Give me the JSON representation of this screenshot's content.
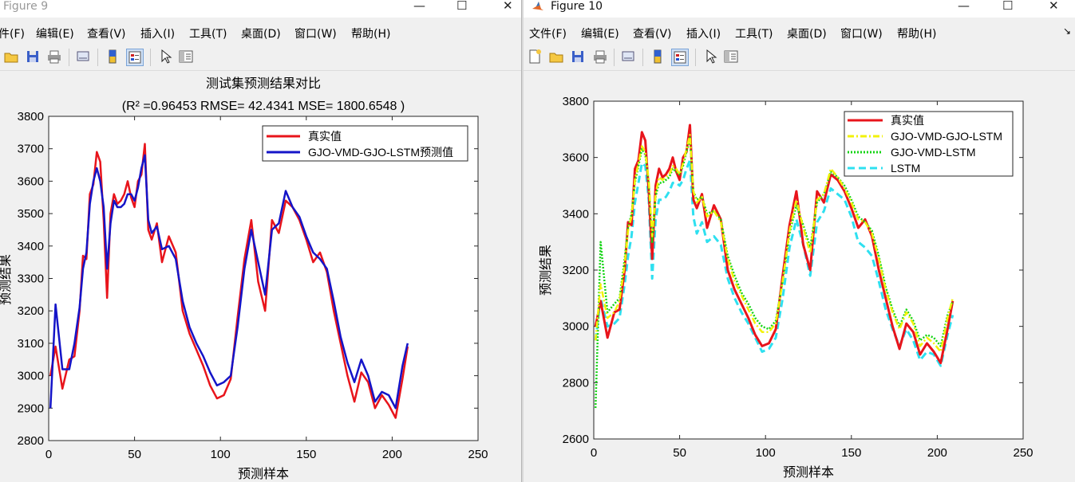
{
  "figure9": {
    "title": "Figure 9",
    "menu": [
      "件(F)",
      "编辑(E)",
      "查看(V)",
      "插入(I)",
      "工具(T)",
      "桌面(D)",
      "窗口(W)",
      "帮助(H)"
    ]
  },
  "figure10": {
    "title": "Figure 10",
    "menu": [
      "文件(F)",
      "编辑(E)",
      "查看(V)",
      "插入(I)",
      "工具(T)",
      "桌面(D)",
      "窗口(W)",
      "帮助(H)"
    ]
  },
  "colors": {
    "real": "#e8141b",
    "gjo_vmd_gjo_lstm_fig9": "#1414c8",
    "gjo_vmd_gjo_lstm_fig10": "#f2f20a",
    "gjo_vmd_lstm": "#14d414",
    "lstm": "#2ee0f0"
  },
  "chart_data": [
    {
      "type": "line",
      "title": "测试集预测结果对比",
      "subtitle": "(R² =0.96453 RMSE= 42.4341 MSE= 1800.6548 )",
      "xlabel": "预测样本",
      "ylabel": "预测结果",
      "xlim": [
        0,
        250
      ],
      "ylim": [
        2800,
        3800
      ],
      "xticks": [
        0,
        50,
        100,
        150,
        200,
        250
      ],
      "yticks": [
        2800,
        2900,
        3000,
        3100,
        3200,
        3300,
        3400,
        3500,
        3600,
        3700,
        3800
      ],
      "legend": "top-right",
      "x": [
        1,
        4,
        8,
        12,
        15,
        18,
        20,
        22,
        24,
        26,
        28,
        30,
        32,
        34,
        36,
        38,
        40,
        42,
        44,
        46,
        48,
        50,
        52,
        54,
        56,
        58,
        60,
        63,
        66,
        70,
        74,
        78,
        82,
        86,
        90,
        94,
        98,
        102,
        106,
        110,
        114,
        118,
        122,
        126,
        130,
        134,
        138,
        142,
        146,
        150,
        154,
        158,
        162,
        166,
        170,
        174,
        178,
        182,
        186,
        190,
        194,
        198,
        202,
        206,
        209
      ],
      "series": [
        {
          "name": "真实值",
          "values": [
            3000,
            3090,
            2960,
            3050,
            3060,
            3200,
            3370,
            3360,
            3560,
            3590,
            3690,
            3660,
            3480,
            3240,
            3500,
            3560,
            3530,
            3540,
            3560,
            3600,
            3550,
            3520,
            3600,
            3620,
            3715,
            3450,
            3420,
            3470,
            3350,
            3430,
            3380,
            3200,
            3130,
            3080,
            3030,
            2970,
            2930,
            2940,
            2990,
            3180,
            3360,
            3480,
            3290,
            3200,
            3480,
            3440,
            3540,
            3520,
            3480,
            3420,
            3350,
            3380,
            3320,
            3200,
            3100,
            3000,
            2920,
            3010,
            2980,
            2900,
            2940,
            2910,
            2870,
            2990,
            3090
          ]
        },
        {
          "name": "GJO-VMD-GJO-LSTM预测值",
          "values": [
            2900,
            3220,
            3020,
            3020,
            3100,
            3210,
            3330,
            3380,
            3530,
            3600,
            3640,
            3600,
            3520,
            3330,
            3470,
            3540,
            3520,
            3520,
            3530,
            3560,
            3560,
            3540,
            3580,
            3640,
            3680,
            3480,
            3440,
            3460,
            3390,
            3400,
            3360,
            3230,
            3150,
            3100,
            3060,
            3010,
            2970,
            2980,
            3000,
            3150,
            3330,
            3450,
            3350,
            3250,
            3450,
            3470,
            3570,
            3520,
            3490,
            3430,
            3380,
            3360,
            3330,
            3230,
            3120,
            3040,
            2980,
            3050,
            3000,
            2920,
            2950,
            2940,
            2900,
            3030,
            3100
          ]
        }
      ]
    },
    {
      "type": "line",
      "title": "",
      "xlabel": "预测样本",
      "ylabel": "预测结果",
      "xlim": [
        0,
        250
      ],
      "ylim": [
        2600,
        3800
      ],
      "xticks": [
        0,
        50,
        100,
        150,
        200,
        250
      ],
      "yticks": [
        2600,
        2800,
        3000,
        3200,
        3400,
        3600,
        3800
      ],
      "legend": "top-right",
      "x": [
        1,
        4,
        8,
        12,
        15,
        18,
        20,
        22,
        24,
        26,
        28,
        30,
        32,
        34,
        36,
        38,
        40,
        42,
        44,
        46,
        48,
        50,
        52,
        54,
        56,
        58,
        60,
        63,
        66,
        70,
        74,
        78,
        82,
        86,
        90,
        94,
        98,
        102,
        106,
        110,
        114,
        118,
        122,
        126,
        130,
        134,
        138,
        142,
        146,
        150,
        154,
        158,
        162,
        166,
        170,
        174,
        178,
        182,
        186,
        190,
        194,
        198,
        202,
        206,
        209
      ],
      "series": [
        {
          "name": "真实值",
          "values": [
            3000,
            3090,
            2960,
            3050,
            3060,
            3200,
            3370,
            3360,
            3560,
            3590,
            3690,
            3660,
            3480,
            3240,
            3500,
            3560,
            3530,
            3540,
            3560,
            3600,
            3550,
            3520,
            3600,
            3620,
            3715,
            3450,
            3420,
            3470,
            3350,
            3430,
            3380,
            3200,
            3130,
            3080,
            3030,
            2970,
            2930,
            2940,
            2990,
            3180,
            3360,
            3480,
            3290,
            3200,
            3480,
            3440,
            3540,
            3520,
            3480,
            3420,
            3350,
            3380,
            3320,
            3200,
            3100,
            3000,
            2920,
            3010,
            2980,
            2900,
            2940,
            2910,
            2870,
            2990,
            3090
          ]
        },
        {
          "name": "GJO-VMD-GJO-LSTM",
          "values": [
            2950,
            3150,
            3030,
            3050,
            3090,
            3220,
            3340,
            3390,
            3520,
            3580,
            3640,
            3620,
            3520,
            3320,
            3470,
            3530,
            3520,
            3530,
            3540,
            3570,
            3560,
            3540,
            3580,
            3630,
            3680,
            3480,
            3440,
            3460,
            3390,
            3410,
            3370,
            3240,
            3160,
            3110,
            3060,
            3010,
            2980,
            2980,
            3010,
            3160,
            3340,
            3450,
            3350,
            3260,
            3450,
            3470,
            3560,
            3530,
            3490,
            3440,
            3380,
            3370,
            3330,
            3240,
            3130,
            3050,
            2990,
            3050,
            3010,
            2930,
            2960,
            2940,
            2910,
            3030,
            3100
          ]
        },
        {
          "name": "GJO-VMD-LSTM",
          "values": [
            2710,
            3300,
            3050,
            3080,
            3100,
            3240,
            3350,
            3400,
            3510,
            3570,
            3630,
            3610,
            3510,
            3300,
            3460,
            3510,
            3510,
            3520,
            3530,
            3560,
            3550,
            3540,
            3570,
            3620,
            3670,
            3480,
            3450,
            3460,
            3400,
            3410,
            3380,
            3250,
            3180,
            3120,
            3080,
            3030,
            3000,
            2990,
            3020,
            3160,
            3330,
            3430,
            3360,
            3280,
            3440,
            3470,
            3550,
            3530,
            3500,
            3450,
            3390,
            3370,
            3340,
            3250,
            3140,
            3060,
            3000,
            3060,
            3020,
            2950,
            2970,
            2960,
            2930,
            3040,
            3090
          ]
        },
        {
          "name": "LSTM",
          "values": [
            2950,
            3100,
            3000,
            3010,
            3030,
            3150,
            3250,
            3320,
            3440,
            3510,
            3580,
            3570,
            3450,
            3170,
            3380,
            3450,
            3450,
            3460,
            3480,
            3510,
            3510,
            3500,
            3520,
            3560,
            3590,
            3390,
            3330,
            3370,
            3300,
            3320,
            3290,
            3170,
            3100,
            3050,
            3010,
            2960,
            2910,
            2920,
            2960,
            3100,
            3280,
            3380,
            3290,
            3180,
            3370,
            3410,
            3490,
            3470,
            3450,
            3390,
            3300,
            3280,
            3250,
            3160,
            3060,
            2990,
            2930,
            2990,
            2950,
            2880,
            2910,
            2900,
            2860,
            2970,
            3040
          ]
        }
      ]
    }
  ]
}
